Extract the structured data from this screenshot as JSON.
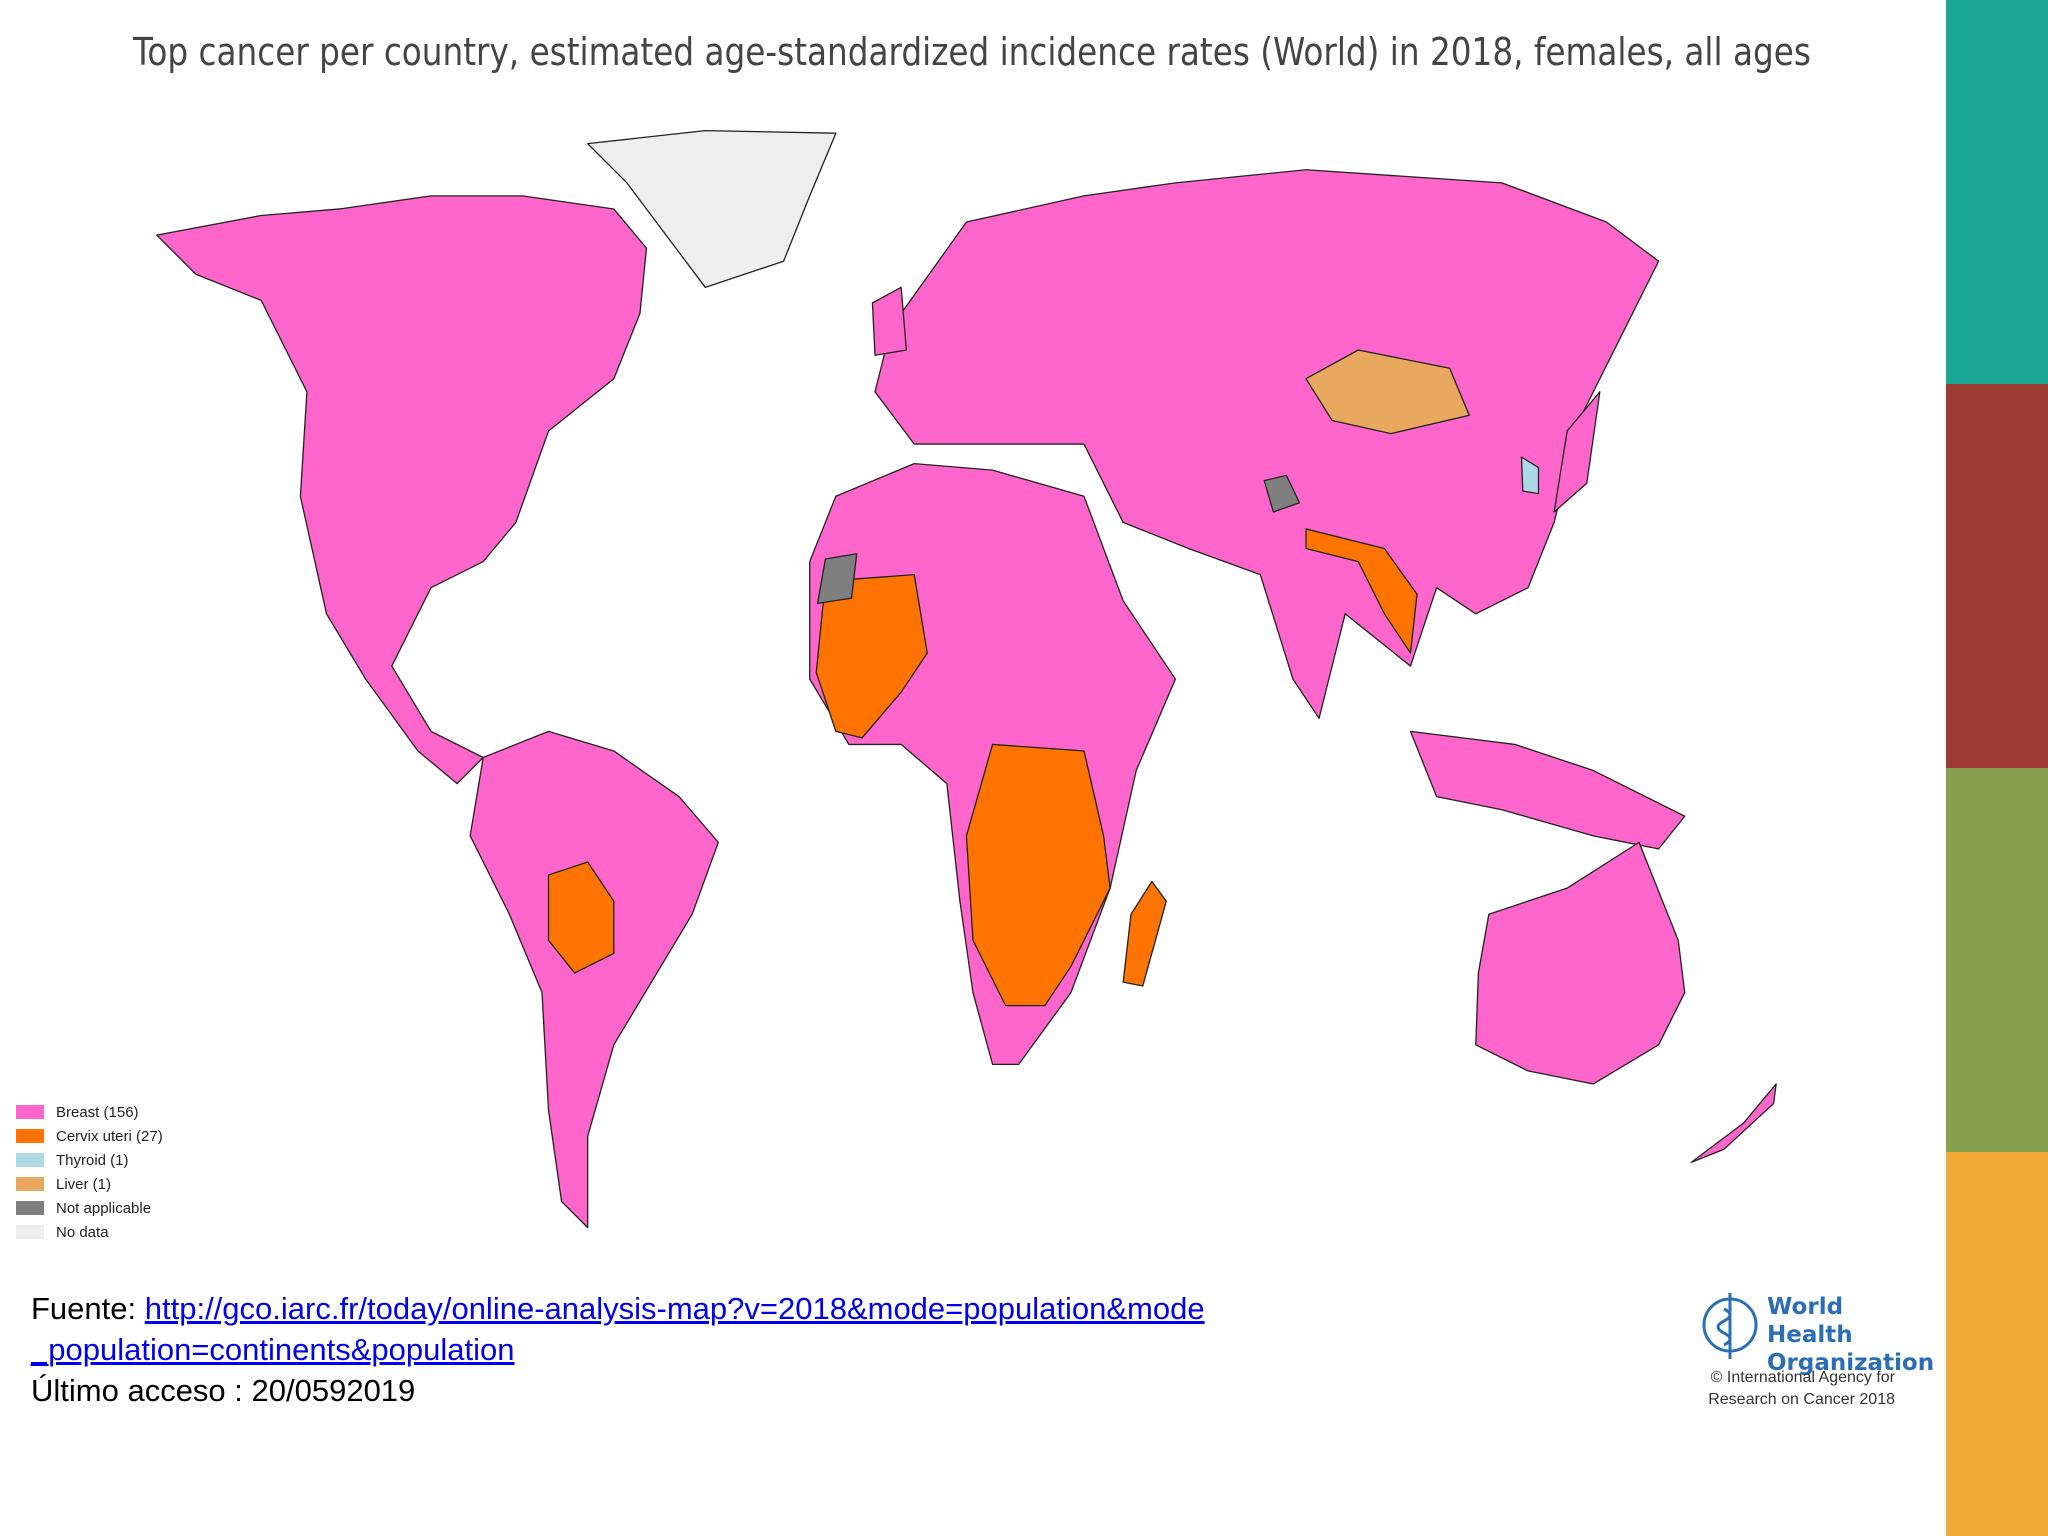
{
  "title": "Top cancer per country, estimated age-standardized incidence rates (World) in 2018, females, all ages",
  "legend": [
    {
      "label": "Breast (156)",
      "color": "#ff66cc"
    },
    {
      "label": "Cervix uteri (27)",
      "color": "#ff7400"
    },
    {
      "label": "Thyroid (1)",
      "color": "#add8e6"
    },
    {
      "label": "Liver (1)",
      "color": "#e8a860"
    },
    {
      "label": "Not applicable",
      "color": "#7f7f7f"
    },
    {
      "label": "No data",
      "color": "#eeeeee"
    }
  ],
  "source": {
    "prefix": "Fuente:",
    "link": "http://gco.iarc.fr/today/online-analysis-map?v=2018&mode=population&mode_population=continents&population",
    "access": "Último acceso : 20/0592019"
  },
  "logo": {
    "name": "World Health Organization",
    "credit": "© International Agency for Research on Cancer 2018"
  }
}
